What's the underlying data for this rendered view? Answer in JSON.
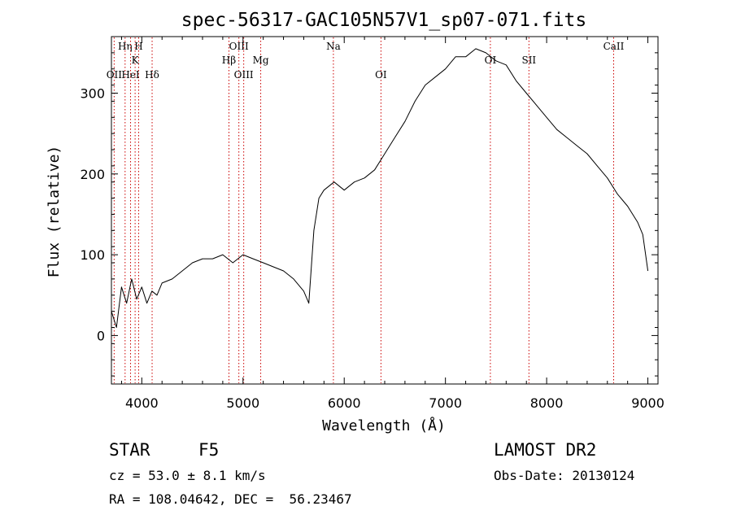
{
  "chart_data": {
    "type": "line",
    "title": "spec-56317-GAC105N57V1_sp07-071.fits",
    "xlabel": "Wavelength (Å)",
    "ylabel": "Flux (relative)",
    "xlim": [
      3700,
      9100
    ],
    "ylim": [
      -60,
      370
    ],
    "xticks": [
      4000,
      5000,
      6000,
      7000,
      8000,
      9000
    ],
    "yticks": [
      0,
      100,
      200,
      300
    ],
    "grid": false,
    "line_color": "#000000",
    "marker_color": "#cc0000",
    "series": [
      {
        "x": [
          3700,
          3750,
          3800,
          3850,
          3900,
          3950,
          4000,
          4050,
          4100,
          4150,
          4200,
          4300,
          4400,
          4500,
          4600,
          4700,
          4800,
          4900,
          5000,
          5100,
          5200,
          5300,
          5400,
          5500,
          5600,
          5650,
          5700,
          5750,
          5800,
          5900,
          6000,
          6100,
          6200,
          6300,
          6400,
          6500,
          6600,
          6700,
          6800,
          6900,
          7000,
          7100,
          7200,
          7300,
          7400,
          7500,
          7600,
          7700,
          7800,
          7900,
          8000,
          8100,
          8200,
          8300,
          8400,
          8500,
          8600,
          8700,
          8800,
          8900,
          8950,
          9000
        ],
        "y": [
          30,
          10,
          60,
          40,
          70,
          45,
          60,
          40,
          55,
          50,
          65,
          70,
          80,
          90,
          95,
          95,
          100,
          90,
          100,
          95,
          90,
          85,
          80,
          70,
          55,
          40,
          130,
          170,
          180,
          190,
          180,
          190,
          195,
          205,
          225,
          245,
          265,
          290,
          310,
          320,
          330,
          345,
          345,
          355,
          350,
          340,
          335,
          315,
          300,
          285,
          270,
          255,
          245,
          235,
          225,
          210,
          195,
          175,
          160,
          140,
          125,
          80
        ]
      }
    ],
    "lines": [
      {
        "label": "Hη",
        "x": 3835,
        "row": 0
      },
      {
        "label": "OII",
        "x": 3727,
        "row": 2
      },
      {
        "label": "HeI",
        "x": 3889,
        "row": 2
      },
      {
        "label": "K",
        "x": 3934,
        "row": 1
      },
      {
        "label": "H",
        "x": 3969,
        "row": 0
      },
      {
        "label": "Hδ",
        "x": 4102,
        "row": 2
      },
      {
        "label": "Hβ",
        "x": 4861,
        "row": 1
      },
      {
        "label": "OIII",
        "x": 4959,
        "row": 0
      },
      {
        "label": "OIII",
        "x": 5007,
        "row": 2
      },
      {
        "label": "Mg",
        "x": 5175,
        "row": 1
      },
      {
        "label": "Na",
        "x": 5893,
        "row": 0
      },
      {
        "label": "OI",
        "x": 6363,
        "row": 2
      },
      {
        "label": "OI",
        "x": 7444,
        "row": 1
      },
      {
        "label": "SII",
        "x": 7825,
        "row": 1
      },
      {
        "label": "CaII",
        "x": 8662,
        "row": 0
      }
    ]
  },
  "footer": {
    "class_label": "STAR",
    "subclass": "F5",
    "survey": "LAMOST DR2",
    "cz": "cz = 53.0 ± 8.1 km/s",
    "obs_date": "Obs-Date: 20130124",
    "coords": "RA = 108.04642, DEC =  56.23467"
  }
}
